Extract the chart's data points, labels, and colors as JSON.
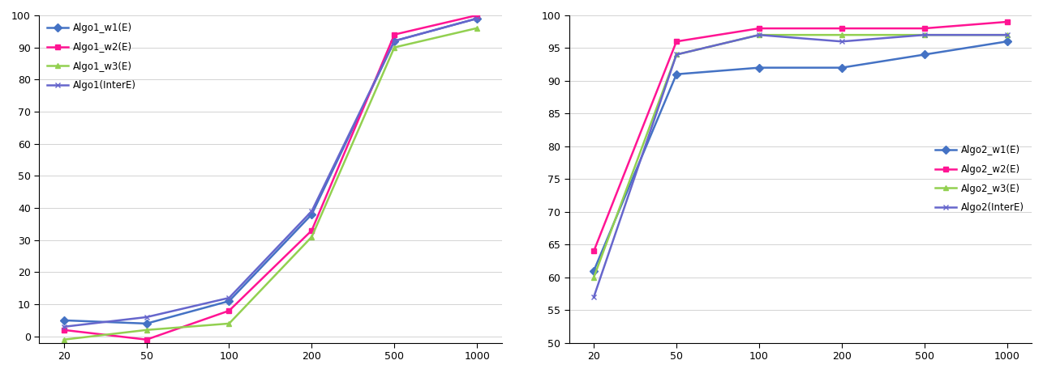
{
  "x": [
    20,
    50,
    100,
    200,
    500,
    1000
  ],
  "x_labels": [
    "20",
    "50",
    "100",
    "200",
    "500",
    "1000"
  ],
  "chart1": {
    "Algo1_w1(E)": [
      5,
      4,
      11,
      38,
      92,
      99
    ],
    "Algo1_w2(E)": [
      2,
      -1,
      8,
      33,
      94,
      100
    ],
    "Algo1_w3(E)": [
      -1,
      2,
      4,
      31,
      90,
      96
    ],
    "Algo1(InterE)": [
      3,
      6,
      12,
      39,
      92,
      99
    ]
  },
  "chart2": {
    "Algo2_w1(E)": [
      61,
      91,
      92,
      92,
      94,
      96
    ],
    "Algo2_w2(E)": [
      64,
      96,
      98,
      98,
      98,
      99
    ],
    "Algo2_w3(E)": [
      60,
      94,
      97,
      97,
      97,
      97
    ],
    "Algo2(InterE)": [
      57,
      94,
      97,
      96,
      97,
      97
    ]
  },
  "colors": {
    "w1": "#4472C4",
    "w2": "#FF1493",
    "w3": "#92D050",
    "inter": "#6666CC"
  },
  "chart1_ylim": [
    -2,
    100
  ],
  "chart1_yticks": [
    0,
    10,
    20,
    30,
    40,
    50,
    60,
    70,
    80,
    90,
    100
  ],
  "chart2_ylim": [
    50,
    100
  ],
  "chart2_yticks": [
    50,
    55,
    60,
    65,
    70,
    75,
    80,
    85,
    90,
    95,
    100
  ],
  "lw": 1.8,
  "ms": 5
}
